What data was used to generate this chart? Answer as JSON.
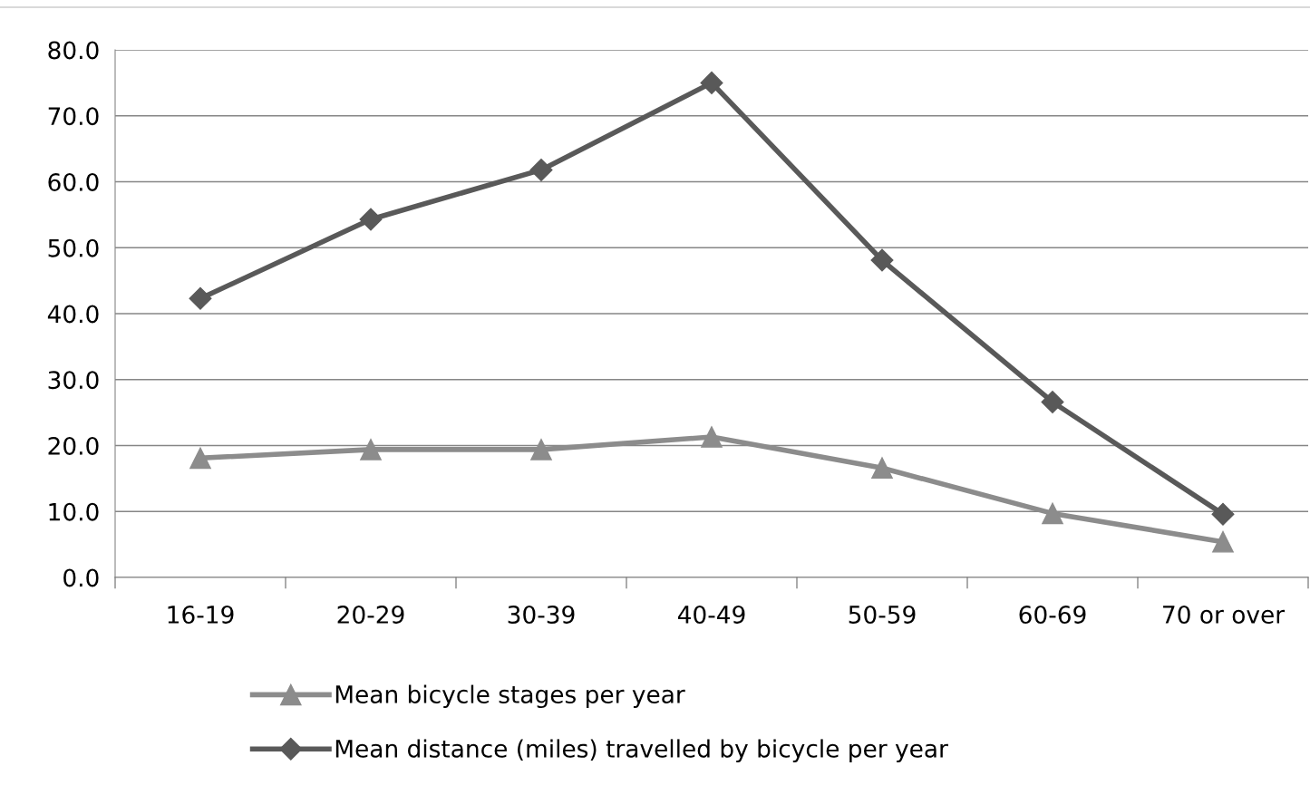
{
  "chart_data": {
    "type": "line",
    "categories": [
      "16-19",
      "20-29",
      "30-39",
      "40-49",
      "50-59",
      "60-69",
      "70 or over"
    ],
    "series": [
      {
        "name": "Mean bicycle stages per year",
        "color": "#8c8c8c",
        "marker": "triangle",
        "values": [
          18.1,
          19.4,
          19.4,
          21.3,
          16.6,
          9.7,
          5.4
        ]
      },
      {
        "name": "Mean distance (miles) travelled by bicycle per year",
        "color": "#595959",
        "marker": "diamond",
        "values": [
          42.3,
          54.3,
          61.8,
          75.0,
          48.1,
          26.6,
          9.6
        ]
      }
    ],
    "ylim": [
      0,
      80
    ],
    "yticks": [
      {
        "value": 0,
        "label": "0.0"
      },
      {
        "value": 10,
        "label": "10.0"
      },
      {
        "value": 20,
        "label": "20.0"
      },
      {
        "value": 30,
        "label": "30.0"
      },
      {
        "value": 40,
        "label": "40.0"
      },
      {
        "value": 50,
        "label": "50.0"
      },
      {
        "value": 60,
        "label": "60.0"
      },
      {
        "value": 70,
        "label": "70.0"
      },
      {
        "value": 80,
        "label": "80.0"
      }
    ],
    "grid": "y",
    "legend": "bottom",
    "line_style": "solid"
  }
}
